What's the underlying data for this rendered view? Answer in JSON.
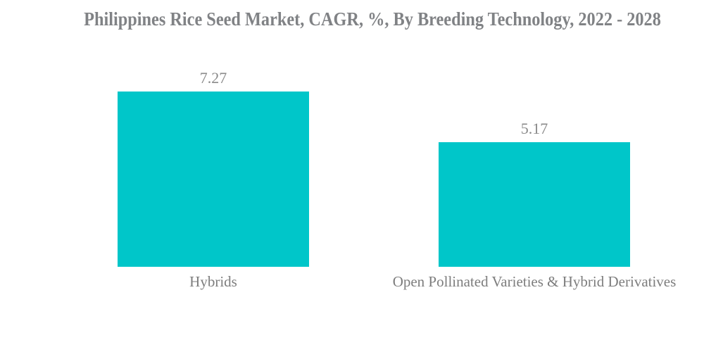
{
  "colors": {
    "background": "#FFFFFF",
    "bar_fill": "#00C6C9",
    "title_text": "#808285",
    "value_text": "#8A8A8A",
    "category_text": "#7D7D7D"
  },
  "chart_data": {
    "type": "bar",
    "orientation": "vertical",
    "title": "Philippines Rice Seed Market, CAGR, %, By Breeding Technology, 2022 - 2028",
    "categories": [
      "Hybrids",
      "Open Pollinated Varieties & Hybrid Derivatives"
    ],
    "values": [
      7.27,
      5.17
    ],
    "value_labels": [
      "7.27",
      "5.17"
    ],
    "xlabel": "",
    "ylabel": "",
    "ylim": [
      0,
      8
    ],
    "grid": false,
    "axes_visible": false,
    "legend": "none",
    "bar_color": "#00C6C9"
  }
}
